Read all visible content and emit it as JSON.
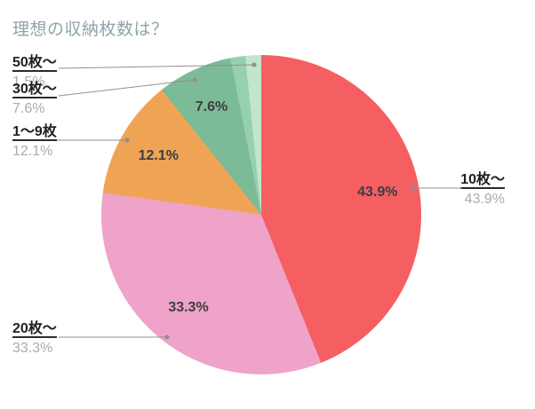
{
  "title": "理想の収納枚数は？",
  "chart_data": {
    "type": "pie",
    "title": "理想の収納枚数は？",
    "direction": "clockwise",
    "start_angle_deg": 0,
    "legend_position": "none",
    "label_style": "outside callout labels with gray leader lines and dots; percent labels inside slices",
    "slices": [
      {
        "label": "10枚〜",
        "value": 43.9,
        "display_pct": "43.9%",
        "color": "#F55F62"
      },
      {
        "label": "20枚〜",
        "value": 33.3,
        "display_pct": "33.3%",
        "color": "#EFA3C9"
      },
      {
        "label": "1〜9枚",
        "value": 12.1,
        "display_pct": "12.1%",
        "color": "#EFA455"
      },
      {
        "label": "30枚〜",
        "value": 7.6,
        "display_pct": "7.6%",
        "color": "#7BBB98"
      },
      {
        "label": "50枚〜",
        "value": 1.5,
        "display_pct": "1.5%",
        "color": "#97D0AE"
      },
      {
        "label": "",
        "value": 1.6,
        "display_pct": "",
        "color": "#C2E5CE",
        "unlabeled": true
      }
    ]
  },
  "callouts": [
    {
      "name": "50枚〜",
      "pct": "1.5%"
    },
    {
      "name": "30枚〜",
      "pct": "7.6%"
    },
    {
      "name": "1〜9枚",
      "pct": "12.1%"
    },
    {
      "name": "20枚〜",
      "pct": "33.3%"
    },
    {
      "name": "10枚〜",
      "pct": "43.9%"
    }
  ],
  "colors": {
    "background": "#FFFFFF",
    "title": "#8EA4AA",
    "callout_name": "#1F1F1F",
    "callout_pct": "#ABABAB",
    "inside_label": "#3D3D3D",
    "leader_line": "#909090"
  }
}
